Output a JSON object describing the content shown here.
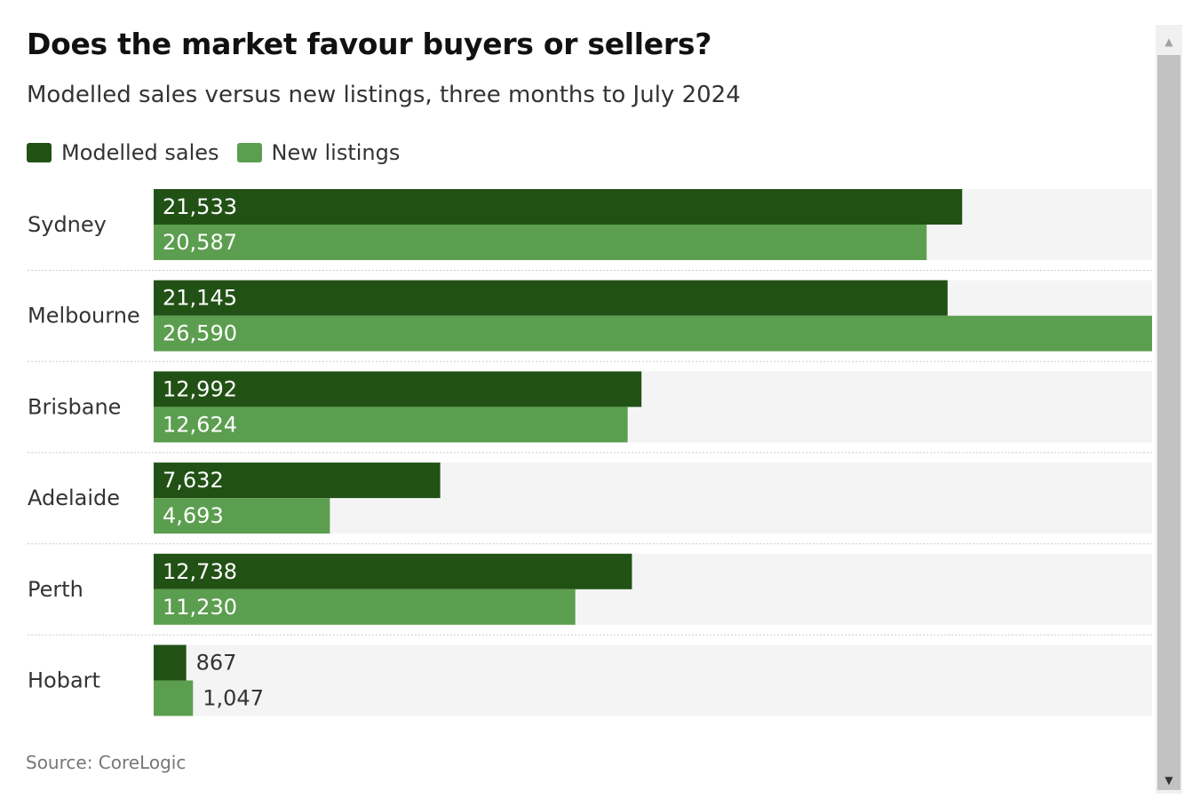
{
  "title": "Does the market favour buyers or sellers?",
  "subtitle": "Modelled sales versus new listings, three months to July 2024",
  "source": "Source: CoreLogic",
  "colors": {
    "modelled_sales": "#225115",
    "new_listings": "#5c9e4f",
    "track": "#f4f4f4"
  },
  "legend": [
    {
      "label": "Modelled sales",
      "color": "#225115"
    },
    {
      "label": "New listings",
      "color": "#5c9e4f"
    }
  ],
  "chart_data": {
    "type": "bar",
    "orientation": "horizontal",
    "title": "Does the market favour buyers or sellers?",
    "subtitle": "Modelled sales versus new listings, three months to July 2024",
    "categories": [
      "Sydney",
      "Melbourne",
      "Brisbane",
      "Adelaide",
      "Perth",
      "Hobart"
    ],
    "series": [
      {
        "name": "Modelled sales",
        "color": "#225115",
        "values": [
          21533,
          21145,
          12992,
          7632,
          12738,
          867
        ],
        "labels": [
          "21,533",
          "21,145",
          "12,992",
          "7,632",
          "12,738",
          "867"
        ]
      },
      {
        "name": "New listings",
        "color": "#5c9e4f",
        "values": [
          20587,
          26590,
          12624,
          4693,
          11230,
          1047
        ],
        "labels": [
          "20,587",
          "26,590",
          "12,624",
          "4,693",
          "11,230",
          "1,047"
        ]
      }
    ],
    "xlim": [
      0,
      26590
    ],
    "grid": false,
    "legend_position": "top-left",
    "source": "Source: CoreLogic"
  },
  "scrollbar": {
    "up_icon": "triangle-up-icon",
    "down_icon": "triangle-down-icon"
  }
}
